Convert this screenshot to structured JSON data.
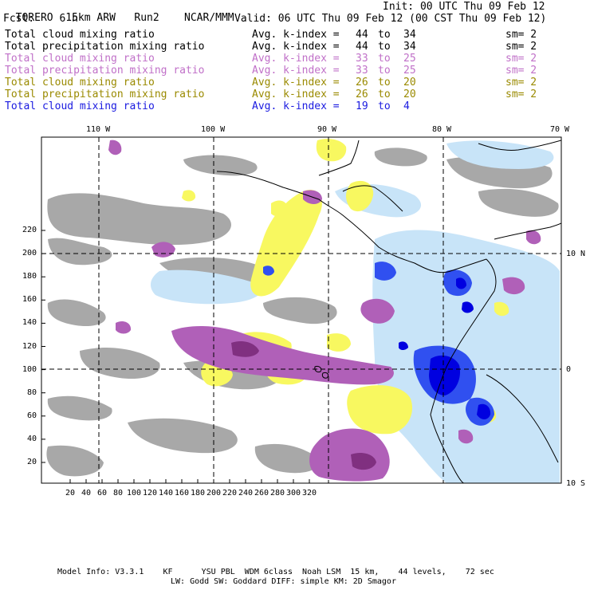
{
  "header": {
    "model": "TORERO",
    "resolution": "15km ARW",
    "run": "Run2",
    "org": "NCAR/MMM",
    "init": "Init: 00 UTC Thu 09 Feb 12",
    "fcst_label": "Fcst:",
    "fcst_value": "6 h",
    "valid": "Valid: 06 UTC Thu 09 Feb 12 (00 CST Thu 09 Feb 12)"
  },
  "legend_rows": [
    {
      "field": "Total cloud mixing ratio",
      "avg": "Avg. k-index =",
      "k1": "44",
      "to": "to",
      "k2": "34",
      "sm": "sm= 2",
      "color": "#000000"
    },
    {
      "field": "Total precipitation mixing ratio",
      "avg": "Avg. k-index =",
      "k1": "44",
      "to": "to",
      "k2": "34",
      "sm": "sm= 2",
      "color": "#000000"
    },
    {
      "field": "Total cloud mixing ratio",
      "avg": "Avg. k-index =",
      "k1": "33",
      "to": "to",
      "k2": "25",
      "sm": "sm= 2",
      "color": "#c070c8"
    },
    {
      "field": "Total precipitation mixing ratio",
      "avg": "Avg. k-index =",
      "k1": "33",
      "to": "to",
      "k2": "25",
      "sm": "sm= 2",
      "color": "#c070c8"
    },
    {
      "field": "Total cloud mixing ratio",
      "avg": "Avg. k-index =",
      "k1": "26",
      "to": "to",
      "k2": "20",
      "sm": "sm= 2",
      "color": "#9a8a00"
    },
    {
      "field": "Total precipitation mixing ratio",
      "avg": "Avg. k-index =",
      "k1": "26",
      "to": "to",
      "k2": "20",
      "sm": "sm= 2",
      "color": "#9a8a00"
    },
    {
      "field": "Total cloud mixing ratio",
      "avg": "Avg. k-index =",
      "k1": "19",
      "to": "to",
      "k2": "4",
      "sm": "",
      "color": "#1a1ae0"
    }
  ],
  "map": {
    "lon_labels": [
      "110 W",
      "100 W",
      "90 W",
      "80 W",
      "70 W"
    ],
    "lat_labels": [
      "10 N",
      "0",
      "10 S"
    ],
    "y_ticks": [
      "220",
      "200",
      "180",
      "160",
      "140",
      "120",
      "100",
      "80",
      "60",
      "40",
      "20"
    ],
    "x_ticks": [
      "20",
      "40",
      "60",
      "80",
      "100",
      "120",
      "140",
      "160",
      "180",
      "200",
      "220",
      "240",
      "260",
      "280",
      "300",
      "320"
    ],
    "colors": {
      "gray": "#a8a8a8",
      "purple": "#b060b8",
      "yellow": "#f8f860",
      "lightblue": "#c8e4f8",
      "blue": "#3050f0",
      "darkblue": "#0000e0",
      "coast": "#000000"
    }
  },
  "footer": {
    "line1": "Model Info: V3.3.1    KF      YSU PBL  WDM 6class  Noah LSM  15 km,    44 levels,    72 sec",
    "line2": "LW: Godd SW: Goddard DIFF: simple KM: 2D Smagor"
  }
}
